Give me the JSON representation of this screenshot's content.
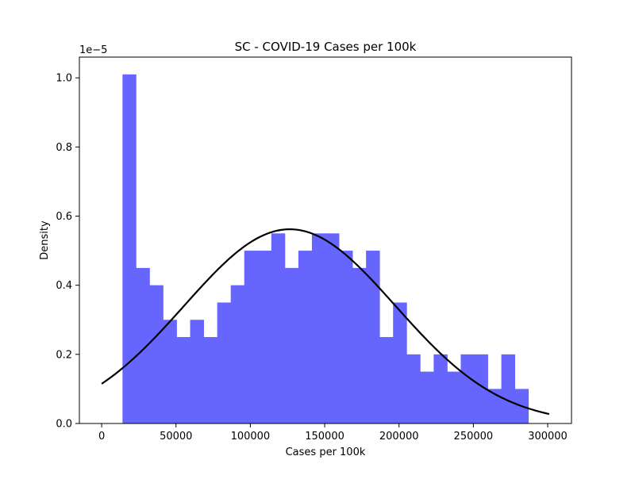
{
  "chart_data": {
    "type": "bar",
    "title": "SC - COVID-19 Cases per 100k",
    "xlabel": "Cases per 100k",
    "ylabel": "Density",
    "y_offset_label": "1e−5",
    "y_multiplier": 1e-05,
    "xlim": [
      -15000,
      316000
    ],
    "ylim": [
      0,
      1.06
    ],
    "x_ticks": [
      0,
      50000,
      100000,
      150000,
      200000,
      250000,
      300000
    ],
    "x_tick_labels": [
      "0",
      "50000",
      "100000",
      "150000",
      "200000",
      "250000",
      "300000"
    ],
    "y_ticks": [
      0.0,
      0.2,
      0.4,
      0.6,
      0.8,
      1.0
    ],
    "y_tick_labels": [
      "0.0",
      "0.2",
      "0.4",
      "0.6",
      "0.8",
      "1.0"
    ],
    "grid": false,
    "histogram": {
      "bin_start": 14000,
      "bin_width": 9100,
      "color": "#6666ff",
      "densities": [
        1.01,
        0.45,
        0.4,
        0.3,
        0.25,
        0.3,
        0.25,
        0.35,
        0.4,
        0.5,
        0.5,
        0.55,
        0.45,
        0.5,
        0.55,
        0.55,
        0.5,
        0.45,
        0.5,
        0.25,
        0.35,
        0.2,
        0.15,
        0.2,
        0.15,
        0.2,
        0.2,
        0.1,
        0.2,
        0.1
      ]
    },
    "normal_fit": {
      "color": "#000000",
      "mean": 126500,
      "std": 71000,
      "x_range": [
        0,
        301000
      ]
    }
  }
}
